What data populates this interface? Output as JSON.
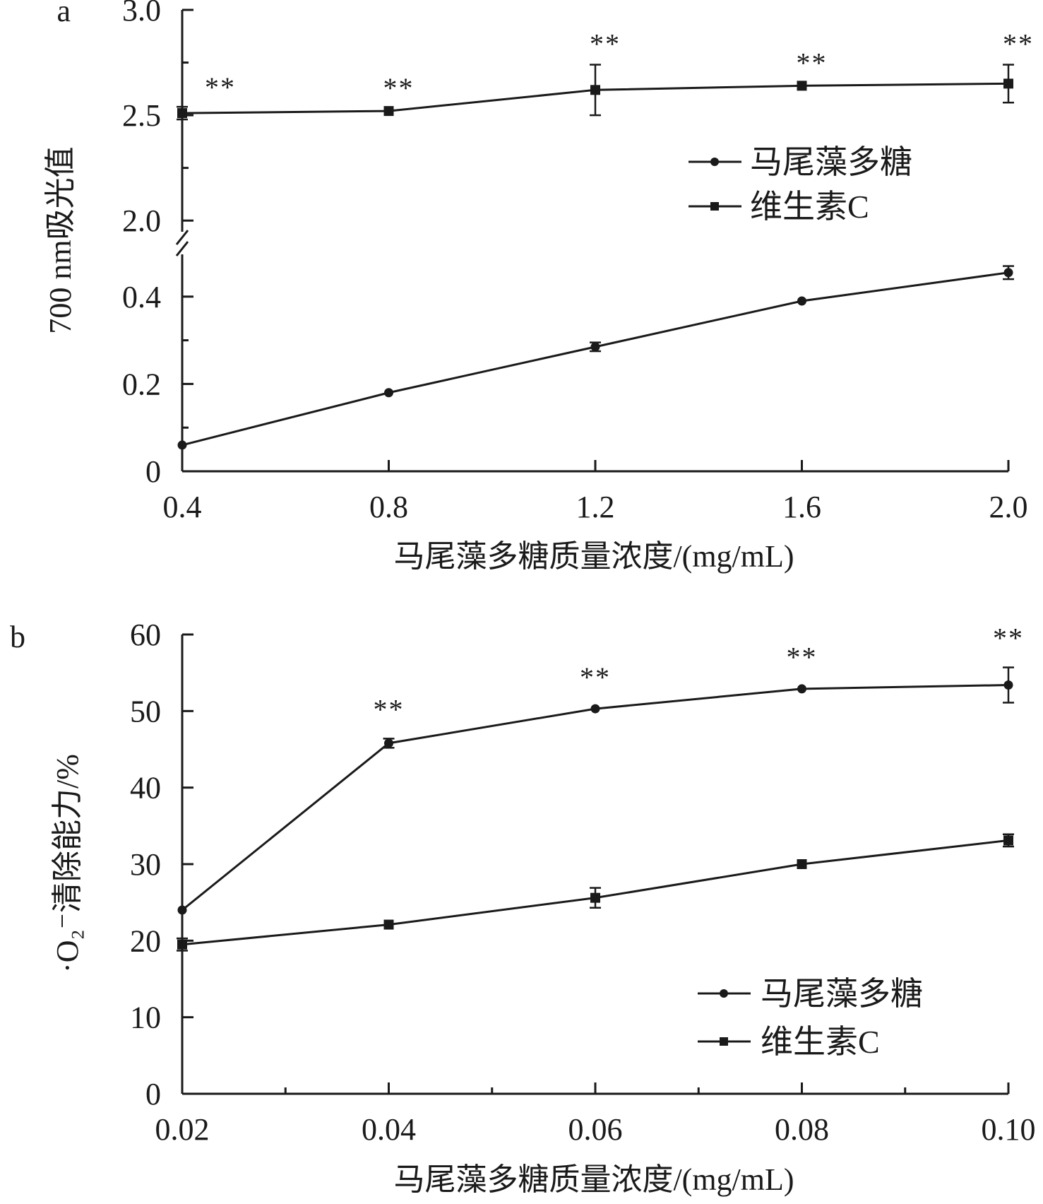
{
  "chart_data": [
    {
      "panel_label": "a",
      "type": "line",
      "xlabel": "马尾藻多糖质量浓度/(mg/mL)",
      "ylabel": "700 nm吸光值",
      "x": [
        0.4,
        0.8,
        1.2,
        1.6,
        2.0
      ],
      "x_tick_labels": [
        "0.4",
        "0.8",
        "1.2",
        "1.6",
        "2.0"
      ],
      "y_axis": {
        "broken": true,
        "lower_range": [
          0,
          0.5
        ],
        "upper_range": [
          1.9,
          3.0
        ],
        "tick_labels": [
          "0",
          "0.2",
          "0.4",
          "2.0",
          "2.5",
          "3.0"
        ]
      },
      "series": [
        {
          "name": "马尾藻多糖",
          "marker": "circle",
          "values": [
            0.06,
            0.18,
            0.285,
            0.39,
            0.455
          ],
          "errors": [
            0.005,
            0.005,
            0.01,
            0.005,
            0.015
          ]
        },
        {
          "name": "维生素C",
          "marker": "square",
          "values": [
            2.51,
            2.52,
            2.62,
            2.64,
            2.65
          ],
          "errors": [
            0.03,
            0.01,
            0.12,
            0.01,
            0.09
          ]
        }
      ],
      "annotations": [
        "**",
        "**",
        "**",
        "**",
        "**"
      ],
      "legend_position": "upper-right"
    },
    {
      "panel_label": "b",
      "type": "line",
      "xlabel": "马尾藻多糖质量浓度/(mg/mL)",
      "ylabel": "·O₂⁻清除能力/%",
      "x": [
        0.02,
        0.04,
        0.06,
        0.08,
        0.1
      ],
      "x_tick_labels": [
        "0.02",
        "0.04",
        "0.06",
        "0.08",
        "0.10"
      ],
      "ylim": [
        0,
        60
      ],
      "y_tick_labels": [
        "0",
        "10",
        "20",
        "30",
        "40",
        "50",
        "60"
      ],
      "series": [
        {
          "name": "马尾藻多糖",
          "marker": "circle",
          "values": [
            24,
            45.8,
            50.3,
            52.9,
            53.4
          ],
          "errors": [
            0.3,
            0.6,
            0.3,
            0.3,
            2.3
          ]
        },
        {
          "name": "维生素C",
          "marker": "square",
          "values": [
            19.5,
            22.1,
            25.6,
            30.0,
            33.1
          ],
          "errors": [
            0.8,
            0.3,
            1.3,
            0.3,
            0.8
          ]
        }
      ],
      "annotations": [
        "**",
        "**",
        "**",
        "**"
      ],
      "legend_position": "lower-right"
    }
  ]
}
